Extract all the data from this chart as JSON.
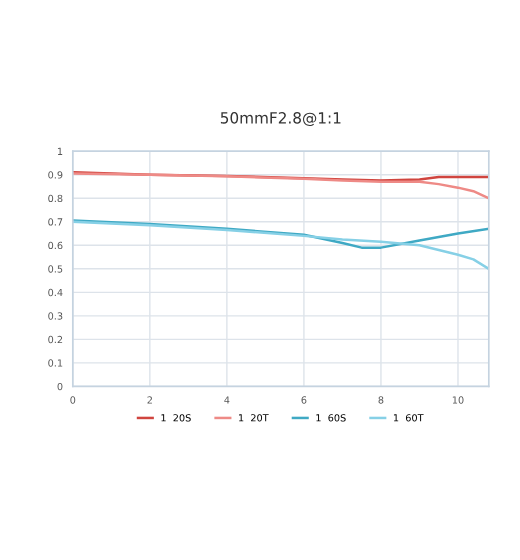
{
  "chart_data": {
    "type": "line",
    "title": "50mmF2.8@1:1",
    "xlim": [
      0,
      10.8
    ],
    "xticks": [
      0,
      2,
      4,
      6,
      8,
      10
    ],
    "ylim": [
      0,
      1
    ],
    "yticks": [
      0,
      0.1,
      0.2,
      0.3,
      0.4,
      0.5,
      0.6,
      0.7,
      0.8,
      0.9,
      1
    ],
    "grid": true,
    "legend": "bottom",
    "marker": "none",
    "line_style": "solid",
    "series": [
      {
        "name": "1  20S",
        "color": "#d0453f",
        "x": [
          0,
          2,
          4,
          6,
          7,
          8,
          9,
          9.5,
          10,
          10.8
        ],
        "values": [
          0.91,
          0.9,
          0.895,
          0.885,
          0.88,
          0.875,
          0.88,
          0.89,
          0.89,
          0.89
        ]
      },
      {
        "name": "1  20T",
        "color": "#ee8a86",
        "x": [
          0,
          2,
          4,
          6,
          7,
          8,
          9,
          9.5,
          10,
          10.4,
          10.8
        ],
        "values": [
          0.905,
          0.9,
          0.893,
          0.883,
          0.875,
          0.87,
          0.87,
          0.86,
          0.845,
          0.83,
          0.8
        ]
      },
      {
        "name": "1  60S",
        "color": "#3fa9c4",
        "x": [
          0,
          2,
          4,
          6,
          7,
          7.5,
          8,
          9,
          10,
          10.8
        ],
        "values": [
          0.705,
          0.69,
          0.67,
          0.645,
          0.61,
          0.59,
          0.59,
          0.62,
          0.65,
          0.67
        ]
      },
      {
        "name": "1  60T",
        "color": "#86d0e6",
        "x": [
          0,
          2,
          4,
          6,
          7,
          8,
          9,
          9.5,
          10,
          10.4,
          10.8
        ],
        "values": [
          0.7,
          0.685,
          0.665,
          0.64,
          0.625,
          0.615,
          0.6,
          0.58,
          0.56,
          0.54,
          0.5
        ]
      }
    ]
  }
}
